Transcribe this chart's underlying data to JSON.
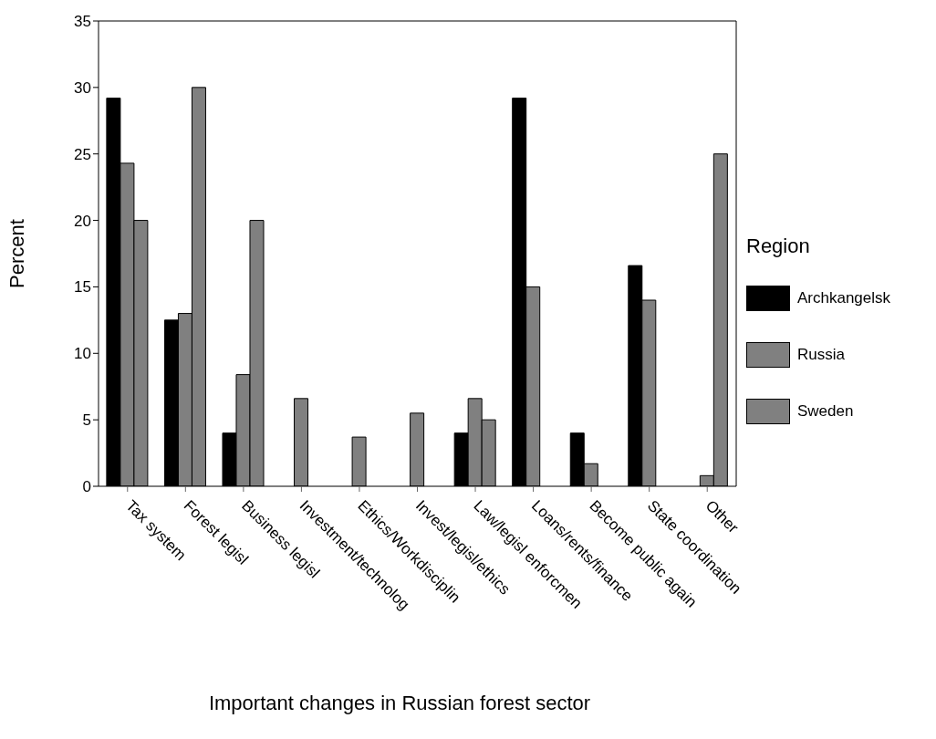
{
  "chart_data": {
    "type": "bar",
    "xlabel": "Important changes in Russian forest sector",
    "ylabel": "Percent",
    "legend_title": "Region",
    "categories": [
      "Tax system",
      "Forest legisl",
      "Business legisl",
      "Investment/technolog",
      "Ethics/Workdisciplin",
      "Invest/legisl/ethics",
      "Law/legisl enforcmen",
      "Loans/rents/finance",
      "Become public again",
      "State coordination",
      "Other"
    ],
    "series": [
      {
        "name": "Archkangelsk",
        "color": "#000000",
        "values": [
          29.2,
          12.5,
          4,
          null,
          null,
          null,
          4,
          29.2,
          4,
          16.6,
          null
        ]
      },
      {
        "name": "Russia",
        "color": "#808080",
        "values": [
          24.3,
          13,
          8.4,
          6.6,
          3.7,
          5.5,
          6.6,
          15,
          1.7,
          14,
          0.8
        ]
      },
      {
        "name": "Sweden",
        "color": "#808080",
        "values": [
          20,
          30,
          20,
          null,
          null,
          null,
          5,
          null,
          null,
          null,
          25
        ]
      }
    ],
    "ylim": [
      0,
      35
    ],
    "yticks": [
      0,
      5,
      10,
      15,
      20,
      25,
      30,
      35
    ],
    "grid": false,
    "legend": "right"
  }
}
